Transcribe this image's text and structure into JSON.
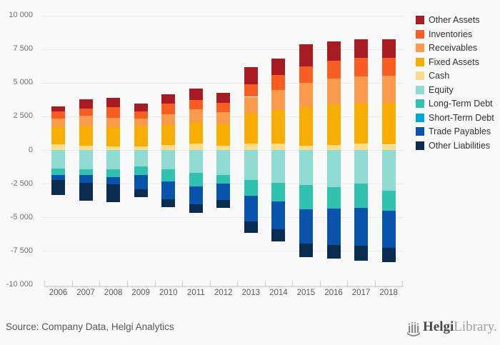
{
  "chart_data": {
    "type": "bar",
    "stacked": true,
    "title": "",
    "xlabel": "",
    "ylabel": "",
    "categories": [
      "2006",
      "2007",
      "2008",
      "2009",
      "2010",
      "2011",
      "2012",
      "2013",
      "2014",
      "2015",
      "2016",
      "2017",
      "2018"
    ],
    "series": [
      {
        "name": "Other Assets",
        "color": "#A81B23",
        "values": [
          400,
          650,
          650,
          600,
          700,
          850,
          750,
          1250,
          1250,
          1650,
          1400,
          1350,
          1400
        ]
      },
      {
        "name": "Inventories",
        "color": "#F95D22",
        "values": [
          500,
          550,
          800,
          500,
          800,
          650,
          700,
          950,
          1100,
          1200,
          1350,
          1400,
          1350
        ]
      },
      {
        "name": "Receivables",
        "color": "#FC9A4B",
        "values": [
          650,
          800,
          700,
          600,
          800,
          1000,
          900,
          1250,
          1500,
          1800,
          1900,
          2000,
          2000
        ]
      },
      {
        "name": "Fixed Assets",
        "color": "#F8AE00",
        "values": [
          1250,
          1450,
          1450,
          1500,
          1500,
          1550,
          1600,
          2200,
          2450,
          2900,
          3050,
          2950,
          3100
        ]
      },
      {
        "name": "Cash",
        "color": "#FBDC8D",
        "values": [
          450,
          300,
          250,
          250,
          350,
          500,
          300,
          500,
          500,
          300,
          350,
          500,
          400
        ]
      },
      {
        "name": "Equity",
        "color": "#90DBD1",
        "values": [
          -1400,
          -1450,
          -1450,
          -1200,
          -1450,
          -1700,
          -1850,
          -2250,
          -2450,
          -2600,
          -2750,
          -2500,
          -3000
        ]
      },
      {
        "name": "Long-Term Debt",
        "color": "#2FC2AE",
        "values": [
          -450,
          -400,
          -550,
          -650,
          -900,
          -1000,
          -650,
          -1150,
          -1350,
          -1800,
          -1600,
          -1800,
          -1500
        ]
      },
      {
        "name": "Short-Term Debt",
        "color": "#00A6D8",
        "values": [
          0,
          0,
          0,
          0,
          0,
          0,
          0,
          0,
          0,
          0,
          0,
          0,
          0
        ]
      },
      {
        "name": "Trade Payables",
        "color": "#0853AB",
        "values": [
          -400,
          -600,
          -550,
          -1050,
          -1300,
          -1350,
          -1200,
          -1900,
          -2100,
          -2550,
          -2700,
          -2800,
          -2750
        ]
      },
      {
        "name": "Other Liabilities",
        "color": "#0A2C51",
        "values": [
          -1100,
          -1300,
          -1350,
          -600,
          -600,
          -600,
          -600,
          -850,
          -900,
          -1000,
          -1000,
          -1150,
          -1100
        ]
      }
    ],
    "positive_stack_order_top_to_bottom": [
      "Other Assets",
      "Inventories",
      "Receivables",
      "Fixed Assets",
      "Cash"
    ],
    "negative_stack_order_from_zero": [
      "Equity",
      "Long-Term Debt",
      "Short-Term Debt",
      "Trade Payables",
      "Other Liabilities"
    ],
    "ylim": [
      -10000,
      10000
    ],
    "ytick_step": 2500,
    "ytick_labels": [
      "10 000",
      "7 500",
      "5 000",
      "2 500",
      "0",
      "-2 500",
      "-5 000",
      "-7 500",
      "-10 000"
    ],
    "ytick_values": [
      10000,
      7500,
      5000,
      2500,
      0,
      -2500,
      -5000,
      -7500,
      -10000
    ],
    "grid": true,
    "legend_position": "right"
  },
  "footer": {
    "source": "Source: Company Data, Helgi Analytics",
    "logo_bold": "Helgi",
    "logo_light": "Library."
  },
  "colors": {
    "background": "#F9F9F9",
    "gridline": "#E9E9E9",
    "axis_line": "#C3CBD6",
    "ytick_text": "#6F6F6F",
    "year_text": "#585858",
    "legend_text": "#303030",
    "source_text": "#565656",
    "logo_icon": "#8A8A8A"
  }
}
